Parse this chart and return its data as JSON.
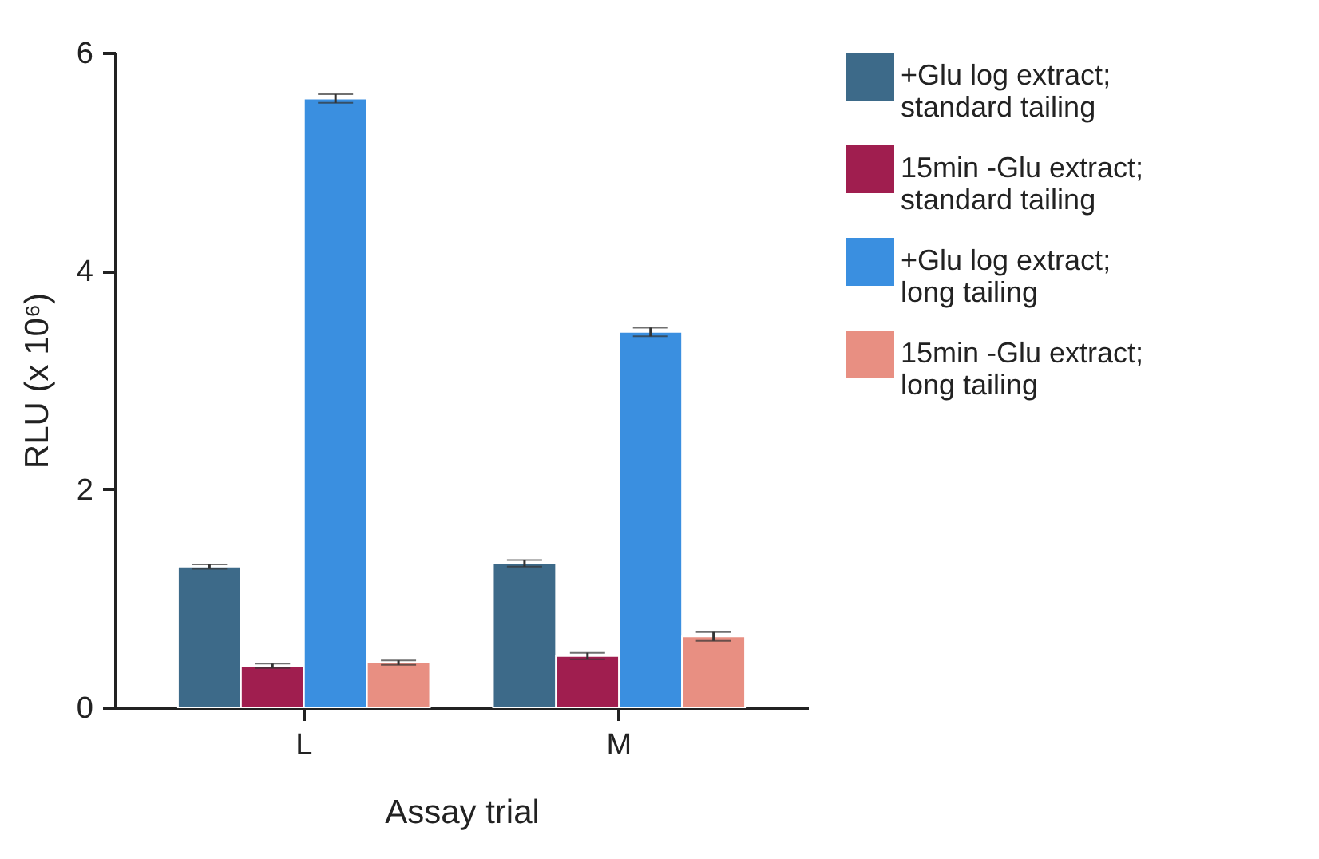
{
  "chart_data": {
    "type": "bar",
    "xlabel": "Assay trial",
    "ylabel": "RLU (x 10⁶)",
    "categories": [
      "L",
      "M"
    ],
    "series": [
      {
        "name": "+Glu log extract; standard tailing",
        "color": "#3d6a89",
        "values": [
          1.29,
          1.32
        ],
        "errors": [
          0.02,
          0.03
        ]
      },
      {
        "name": "15min -Glu extract; standard tailing",
        "color": "#a01e4f",
        "values": [
          0.38,
          0.47
        ],
        "errors": [
          0.02,
          0.03
        ]
      },
      {
        "name": "+Glu log extract; long tailing",
        "color": "#3a8fe0",
        "values": [
          5.58,
          3.44
        ],
        "errors": [
          0.04,
          0.04
        ]
      },
      {
        "name": "15min -Glu extract; long tailing",
        "color": "#e88f82",
        "values": [
          0.41,
          0.65
        ],
        "errors": [
          0.02,
          0.04
        ]
      }
    ],
    "ylim": [
      0,
      6
    ],
    "yticks": [
      0,
      2,
      4,
      6
    ],
    "grid": false,
    "legend": "top right"
  }
}
